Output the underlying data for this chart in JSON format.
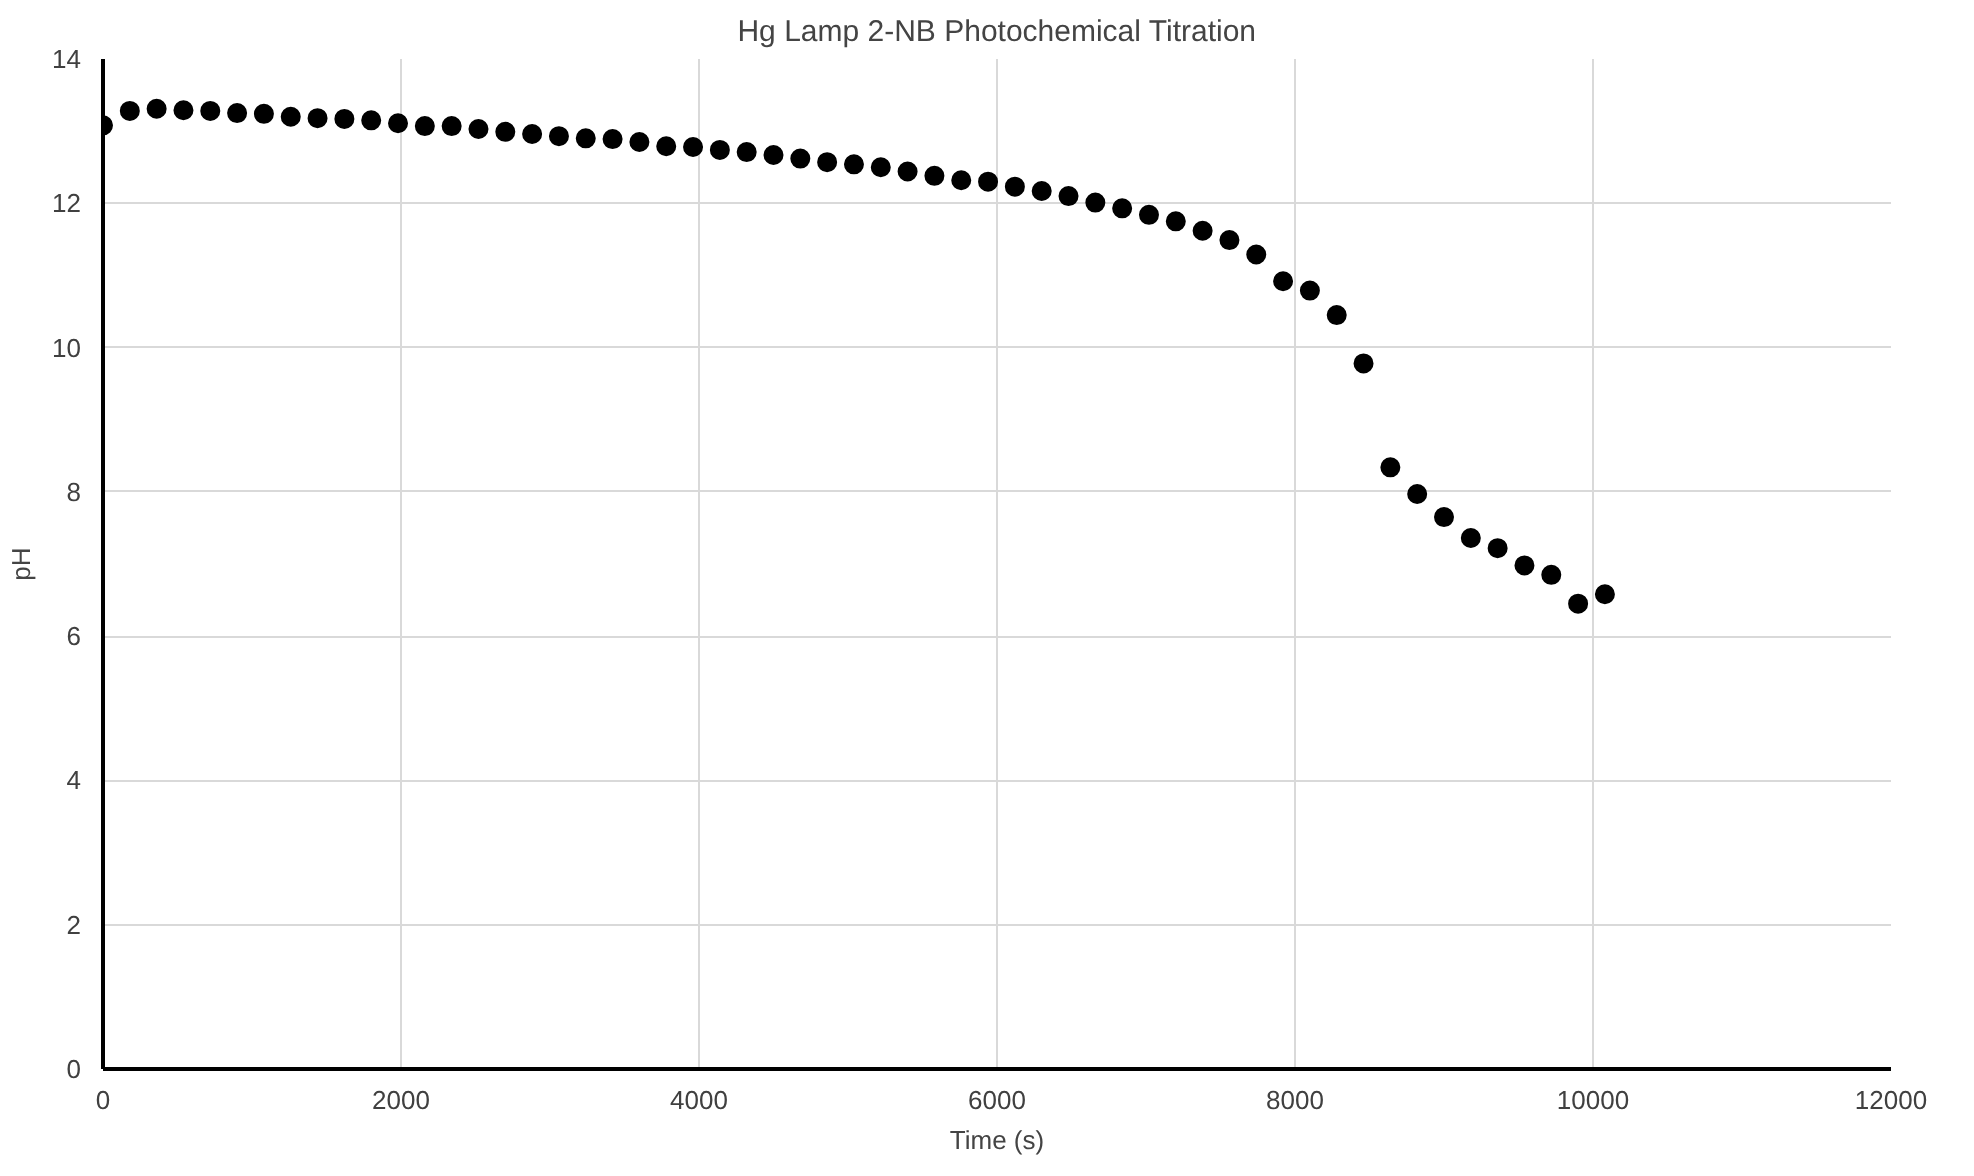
{
  "chart_data": {
    "type": "scatter",
    "title": "Hg Lamp 2-NB Photochemical Titration",
    "xlabel": "Time (s)",
    "ylabel": "pH",
    "xlim": [
      0,
      12000
    ],
    "xticks": [
      0,
      2000,
      4000,
      6000,
      8000,
      10000,
      12000
    ],
    "ylim": [
      0,
      14
    ],
    "yticks": [
      0,
      2,
      4,
      6,
      8,
      10,
      12,
      14
    ],
    "grid": true,
    "marker": "circle",
    "series": [
      {
        "color": "#000000",
        "x": [
          0,
          180,
          360,
          540,
          720,
          900,
          1080,
          1260,
          1440,
          1620,
          1800,
          1980,
          2160,
          2340,
          2520,
          2700,
          2880,
          3060,
          3240,
          3420,
          3600,
          3780,
          3960,
          4140,
          4320,
          4500,
          4680,
          4860,
          5040,
          5220,
          5400,
          5580,
          5760,
          5940,
          6120,
          6300,
          6480,
          6660,
          6840,
          7020,
          7200,
          7380,
          7560,
          7740,
          7920,
          8100,
          8280,
          8460,
          8640,
          8820,
          9000,
          9180,
          9360,
          9540,
          9720,
          9900,
          10080
        ],
        "values": [
          13.08,
          13.28,
          13.31,
          13.29,
          13.28,
          13.25,
          13.24,
          13.2,
          13.18,
          13.17,
          13.15,
          13.11,
          13.07,
          13.07,
          13.03,
          12.99,
          12.96,
          12.93,
          12.9,
          12.89,
          12.85,
          12.79,
          12.78,
          12.74,
          12.71,
          12.67,
          12.62,
          12.57,
          12.54,
          12.5,
          12.44,
          12.38,
          12.32,
          12.3,
          12.23,
          12.17,
          12.1,
          12.01,
          11.93,
          11.84,
          11.75,
          11.62,
          11.49,
          11.29,
          10.92,
          10.79,
          10.45,
          9.78,
          8.34,
          7.97,
          7.65,
          7.36,
          7.22,
          6.98,
          6.85,
          6.45,
          6.58
        ]
      }
    ]
  }
}
